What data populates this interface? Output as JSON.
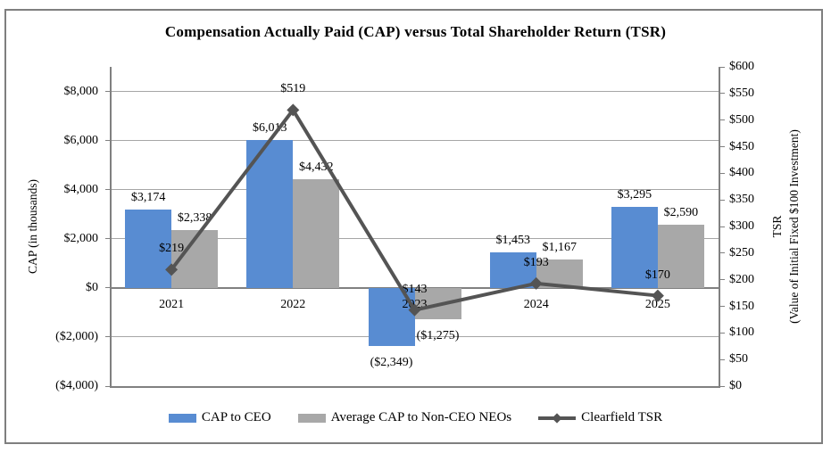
{
  "chart_data": {
    "type": "combo-bar-line",
    "title": "Compensation Actually Paid (CAP) versus Total Shareholder Return (TSR)",
    "categories": [
      "2021",
      "2022",
      "2023",
      "2024",
      "2025"
    ],
    "series": [
      {
        "name": "CAP to CEO",
        "type": "bar",
        "axis": "left",
        "color": "#588CD2",
        "values": [
          3174,
          6013,
          -2349,
          1453,
          3295
        ],
        "labels": [
          "$3,174",
          "$6,013",
          "($2,349)",
          "$1,453",
          "$3,295"
        ]
      },
      {
        "name": "Average CAP to Non-CEO NEOs",
        "type": "bar",
        "axis": "left",
        "color": "#A8A8A8",
        "values": [
          2338,
          4432,
          -1275,
          1167,
          2590
        ],
        "labels": [
          "$2,338",
          "$4,432",
          "($1,275)",
          "$1,167",
          "$2,590"
        ]
      },
      {
        "name": "Clearfield TSR",
        "type": "line",
        "axis": "right",
        "color": "#545454",
        "values": [
          219,
          519,
          143,
          193,
          170
        ],
        "labels": [
          "$219",
          "$519",
          "$143",
          "$193",
          "$170"
        ]
      }
    ],
    "left_axis": {
      "title": "CAP (in thousands)",
      "min": -4000,
      "max": 9000,
      "tick_values": [
        8000,
        6000,
        4000,
        2000,
        0,
        -2000,
        -4000
      ],
      "tick_labels": [
        "$8,000",
        "$6,000",
        "$4,000",
        "$2,000",
        "$0",
        "($2,000)",
        "($4,000)"
      ]
    },
    "right_axis": {
      "title": "TSR",
      "subtitle": "(Value of Initial Fixed $100 Investment)",
      "min": 0,
      "max": 600,
      "step": 50,
      "tick_labels": [
        "$600",
        "$550",
        "$500",
        "$450",
        "$400",
        "$350",
        "$300",
        "$250",
        "$200",
        "$150",
        "$100",
        "$50",
        "$0"
      ]
    },
    "legend_position": "bottom",
    "grid": true
  }
}
